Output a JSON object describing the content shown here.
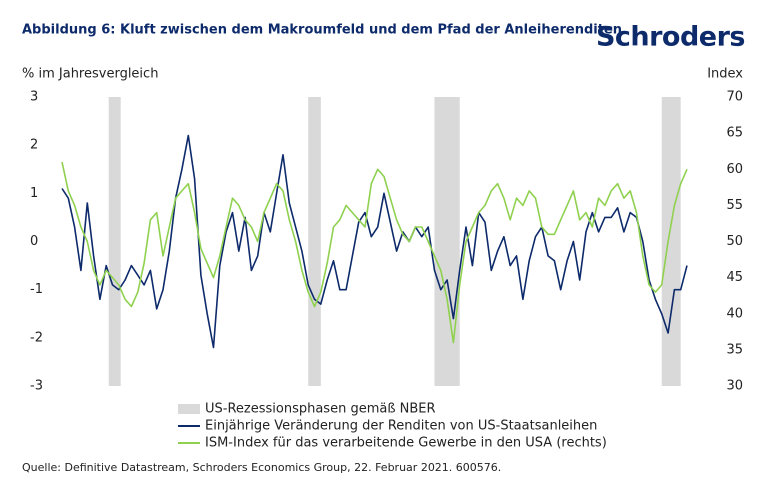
{
  "chart_data": {
    "type": "line",
    "title": "Abbildung 6: Kluft zwischen dem Makroumfeld und dem Pfad der Anleiherenditen",
    "logo": "Schroders",
    "y_label": "% im Jahresvergleich",
    "y2_label": "Index",
    "source": "Quelle: Definitive Datastream, Schroders Economics Group, 22. Februar 2021. 600576.",
    "categories": [
      null,
      null,
      null,
      null,
      null,
      null,
      null,
      null,
      null,
      null,
      null,
      null,
      null,
      null,
      null,
      null,
      null,
      null,
      null,
      null,
      null,
      null,
      null,
      null,
      null,
      null,
      null,
      null,
      null,
      null,
      null,
      null,
      null,
      null,
      null,
      null,
      null,
      null,
      null,
      null,
      null,
      null,
      null,
      null,
      null,
      null,
      null,
      null,
      null,
      null,
      null,
      null,
      null,
      null,
      null,
      null,
      null,
      null,
      null,
      null,
      null,
      null,
      null,
      null,
      null,
      null,
      null,
      null,
      null,
      null,
      null,
      null,
      null,
      null,
      null,
      null,
      null,
      null,
      null,
      null,
      null,
      null,
      null,
      null,
      null,
      null,
      null,
      null,
      null,
      null,
      null,
      null,
      null,
      null,
      null,
      null,
      null,
      null,
      null,
      null
    ],
    "ylim": [
      -3,
      3
    ],
    "yticks": [
      -3,
      -2,
      -1,
      0,
      1,
      2,
      3
    ],
    "y2lim": [
      30,
      70
    ],
    "y2ticks": [
      30,
      35,
      40,
      45,
      50,
      55,
      60,
      65,
      70
    ],
    "series": [
      {
        "name": "US-Rezessionsphasen gemäß NBER",
        "type": "band",
        "color": "#d9d9d9",
        "ranges": [
          [
            7.4,
            9.3
          ],
          [
            39,
            41
          ],
          [
            59,
            63
          ],
          [
            95,
            98
          ]
        ]
      },
      {
        "name": "Einjährige Veränderung der Renditen von US-Staatsanleihen",
        "color": "#0d2a6b",
        "values": [
          1.1,
          0.9,
          0.3,
          -0.6,
          0.8,
          -0.3,
          -1.2,
          -0.5,
          -0.9,
          -1.0,
          -0.8,
          -0.5,
          -0.7,
          -0.9,
          -0.6,
          -1.4,
          -1.0,
          -0.2,
          0.9,
          1.5,
          2.2,
          1.3,
          -0.7,
          -1.5,
          -2.2,
          -0.5,
          0.2,
          0.6,
          -0.2,
          0.5,
          -0.6,
          -0.3,
          0.6,
          0.2,
          1.0,
          1.8,
          0.8,
          0.3,
          -0.2,
          -0.9,
          -1.2,
          -1.3,
          -0.8,
          -0.4,
          -1.0,
          -1.0,
          -0.3,
          0.4,
          0.6,
          0.1,
          0.3,
          1.0,
          0.4,
          -0.2,
          0.2,
          0.0,
          0.3,
          0.1,
          0.3,
          -0.6,
          -1.0,
          -0.8,
          -1.6,
          -0.6,
          0.3,
          -0.5,
          0.6,
          0.4,
          -0.6,
          -0.2,
          0.1,
          -0.5,
          -0.3,
          -1.2,
          -0.4,
          0.1,
          0.3,
          -0.3,
          -0.4,
          -1.0,
          -0.4,
          0.0,
          -0.8,
          0.2,
          0.6,
          0.2,
          0.5,
          0.5,
          0.7,
          0.2,
          0.6,
          0.5,
          0.0,
          -0.8,
          -1.2,
          -1.5,
          -1.9,
          -1.0,
          -1.0,
          -0.5
        ]
      },
      {
        "name": "ISM-Index für das verarbeitende Gewerbe in den USA (rechts)",
        "color": "#8fd14f",
        "axis": "y2",
        "values": [
          61,
          57,
          55,
          52,
          50,
          46,
          44,
          46,
          45,
          44,
          42,
          41,
          43,
          47,
          53,
          54,
          48,
          52,
          56,
          57,
          58,
          54,
          49,
          47,
          45,
          48,
          52,
          56,
          55,
          53,
          52,
          50,
          54,
          56,
          58,
          57,
          53,
          50,
          46,
          43,
          41,
          43,
          47,
          52,
          53,
          55,
          54,
          53,
          52,
          58,
          60,
          59,
          56,
          53,
          51,
          50,
          52,
          52,
          50,
          48,
          46,
          42,
          36,
          44,
          50,
          52,
          54,
          55,
          57,
          58,
          56,
          53,
          56,
          55,
          57,
          56,
          52,
          51,
          51,
          53,
          55,
          57,
          53,
          54,
          52,
          56,
          55,
          57,
          58,
          56,
          57,
          54,
          48,
          44,
          43,
          44,
          50,
          55,
          58,
          60
        ]
      }
    ]
  }
}
